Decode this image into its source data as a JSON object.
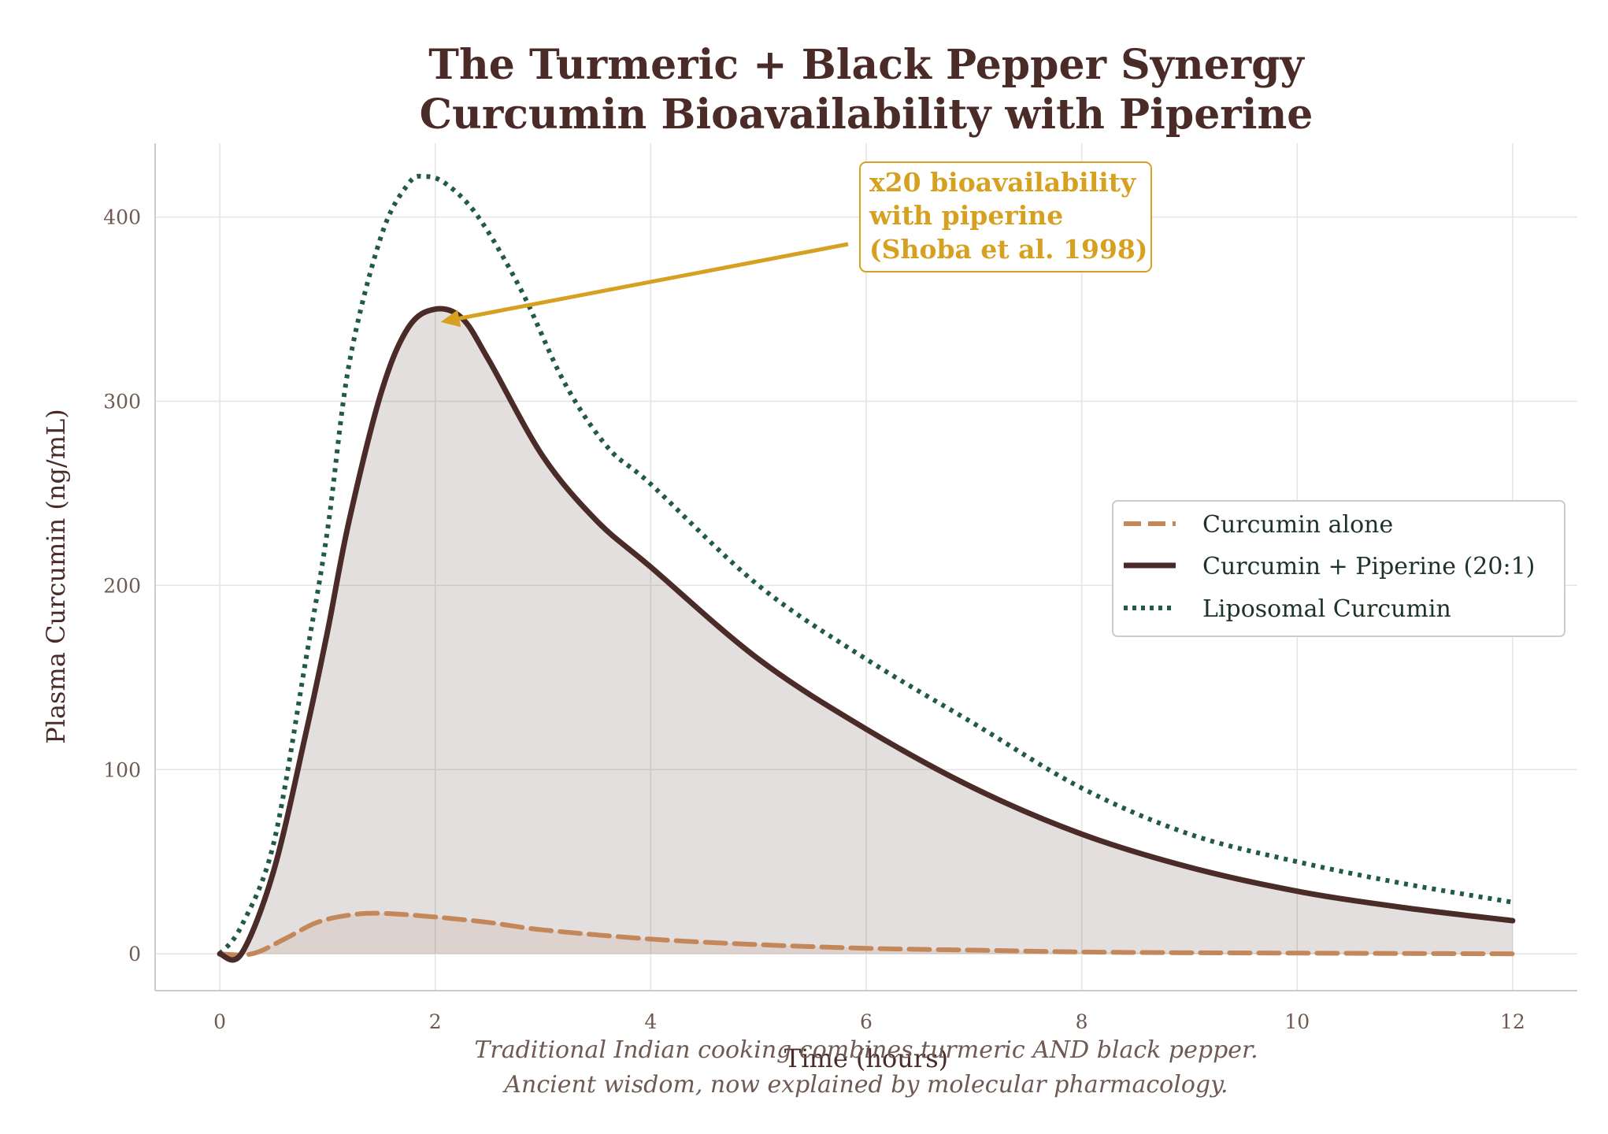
{
  "chart_data": {
    "type": "line",
    "title_lines": [
      "The Turmeric + Black Pepper Synergy",
      "Curcumin Bioavailability with Piperine"
    ],
    "xlabel": "Time (hours)",
    "ylabel": "Plasma Curcumin (ng/mL)",
    "xlim": [
      -0.6,
      12.6
    ],
    "ylim": [
      -20,
      440
    ],
    "xticks": [
      0,
      2,
      4,
      6,
      8,
      10,
      12
    ],
    "yticks": [
      0,
      100,
      200,
      300,
      400
    ],
    "grid": true,
    "legend_position": "center-right",
    "series": [
      {
        "name": "Curcumin alone",
        "style": "dashed",
        "color": "#c4875a",
        "x": [
          0,
          0.3,
          0.6,
          0.9,
          1.2,
          1.5,
          2,
          2.5,
          3,
          4,
          5,
          6,
          7,
          8,
          9,
          10,
          11,
          12
        ],
        "y": [
          0,
          0,
          8,
          17,
          21,
          22,
          20,
          17,
          13,
          8,
          5,
          3,
          2,
          1,
          0.6,
          0.4,
          0.2,
          0
        ]
      },
      {
        "name": "Curcumin + Piperine (20:1)",
        "style": "solid",
        "color": "#4a2b28",
        "fill": true,
        "x": [
          0,
          0.2,
          0.5,
          0.8,
          1,
          1.2,
          1.5,
          1.75,
          2,
          2.25,
          2.5,
          3,
          3.5,
          4,
          5,
          6,
          7,
          8,
          9,
          10,
          11,
          12
        ],
        "y": [
          0,
          0,
          45,
          120,
          175,
          235,
          305,
          340,
          350,
          345,
          322,
          270,
          235,
          210,
          160,
          122,
          90,
          65,
          47,
          34,
          25,
          18
        ]
      },
      {
        "name": "Liposomal Curcumin",
        "style": "dotted",
        "color": "#225a47",
        "x": [
          0,
          0.2,
          0.5,
          0.8,
          1,
          1.2,
          1.5,
          1.75,
          1.9,
          2.1,
          2.4,
          2.8,
          3.2,
          3.6,
          4,
          5,
          6,
          7,
          8,
          9,
          10,
          11,
          12
        ],
        "y": [
          0,
          15,
          60,
          160,
          230,
          320,
          390,
          418,
          422,
          418,
          400,
          360,
          310,
          275,
          255,
          200,
          160,
          125,
          90,
          65,
          50,
          38,
          28
        ]
      }
    ],
    "annotation": {
      "lines": [
        "x20 bioavailability",
        "with piperine",
        "(Shoba et al. 1998)"
      ],
      "point": {
        "x": 2.05,
        "y": 343
      },
      "text_anchor": {
        "x": 5.9,
        "y": 385
      },
      "color": "#d6a020"
    },
    "footnote_lines": [
      "Traditional Indian cooking combines turmeric AND black pepper.",
      "Ancient wisdom, now explained by molecular pharmacology."
    ]
  }
}
